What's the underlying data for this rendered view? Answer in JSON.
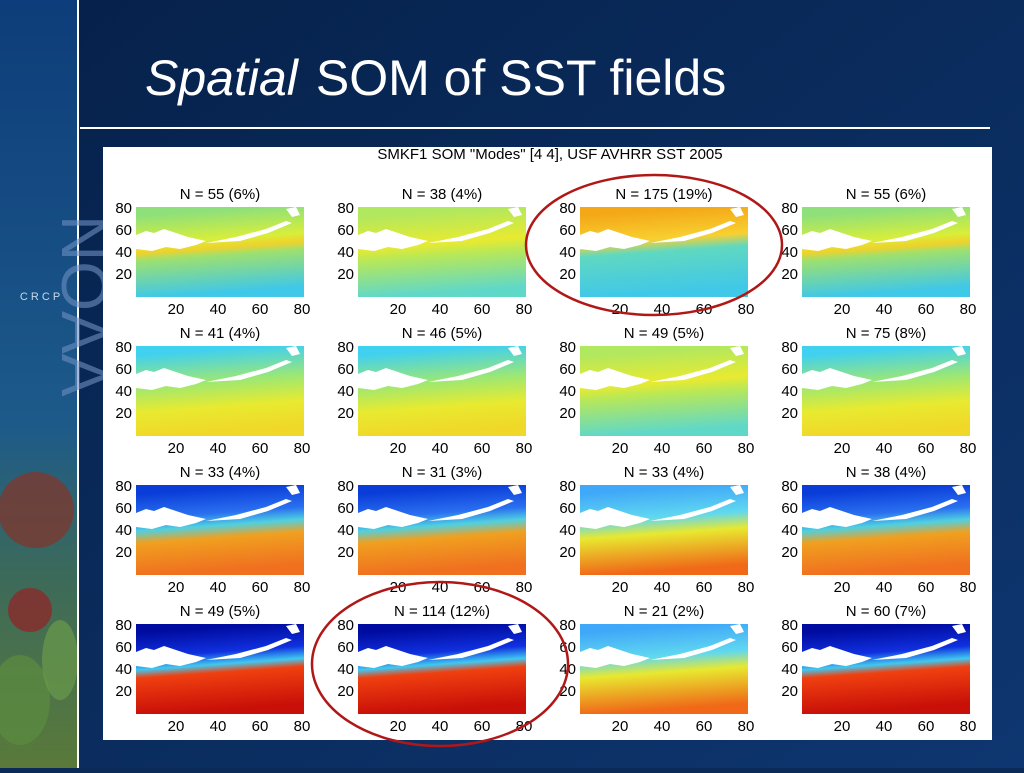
{
  "slide": {
    "title_italic": "Spatial",
    "title_rest": "SOM of SST fields",
    "logo": "NOAA",
    "logo_sub": "C R C P"
  },
  "figure": {
    "title": "SMKF1 SOM \"Modes\" [4 4], USF AVHRR SST 2005",
    "panels": [
      "N = 55 (6%)",
      "N = 38 (4%)",
      "N = 175 (19%)",
      "N = 55 (6%)",
      "N = 41 (4%)",
      "N = 46 (5%)",
      "N = 49 (5%)",
      "N = 75 (8%)",
      "N = 33 (4%)",
      "N = 31 (3%)",
      "N = 33 (4%)",
      "N = 38 (4%)",
      "N = 49 (5%)",
      "N = 114 (12%)",
      "N = 21 (2%)",
      "N = 60 (7%)"
    ],
    "xticks": [
      20,
      40,
      60,
      80
    ],
    "yticks": [
      20,
      40,
      60,
      80
    ]
  }
}
